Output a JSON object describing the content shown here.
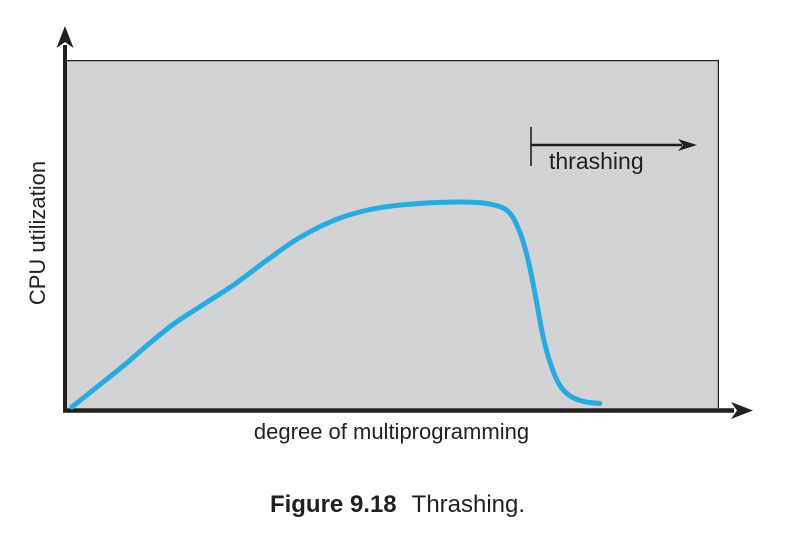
{
  "figure": {
    "caption_number": "Figure 9.18",
    "caption_title": "Thrashing."
  },
  "colors": {
    "curve": "#29ABE2",
    "plot_background": "#D1D3D4",
    "ink": "#231F20"
  },
  "chart_data": {
    "type": "line",
    "title": "Figure 9.18 Thrashing.",
    "xlabel": "degree of multiprogramming",
    "ylabel": "CPU utilization",
    "xlim": [
      0,
      1
    ],
    "ylim": [
      0,
      1
    ],
    "grid": false,
    "tick_labels": "none",
    "legend": "none",
    "annotations": [
      {
        "label": "thrashing",
        "shape": "right-arrow-with-start-tick",
        "x_start": 0.713,
        "x_end": 0.964,
        "y": 0.755
      }
    ],
    "series": [
      {
        "name": "CPU utilization",
        "color": "#29ABE2",
        "points": [
          [
            0.012,
            0.003
          ],
          [
            0.05,
            0.06
          ],
          [
            0.09,
            0.12
          ],
          [
            0.13,
            0.185
          ],
          [
            0.17,
            0.245
          ],
          [
            0.215,
            0.3
          ],
          [
            0.26,
            0.355
          ],
          [
            0.31,
            0.425
          ],
          [
            0.36,
            0.49
          ],
          [
            0.42,
            0.545
          ],
          [
            0.48,
            0.575
          ],
          [
            0.545,
            0.588
          ],
          [
            0.61,
            0.592
          ],
          [
            0.65,
            0.586
          ],
          [
            0.678,
            0.565
          ],
          [
            0.695,
            0.51
          ],
          [
            0.708,
            0.43
          ],
          [
            0.72,
            0.32
          ],
          [
            0.732,
            0.2
          ],
          [
            0.745,
            0.115
          ],
          [
            0.758,
            0.062
          ],
          [
            0.775,
            0.032
          ],
          [
            0.795,
            0.018
          ],
          [
            0.818,
            0.013
          ]
        ]
      }
    ]
  }
}
